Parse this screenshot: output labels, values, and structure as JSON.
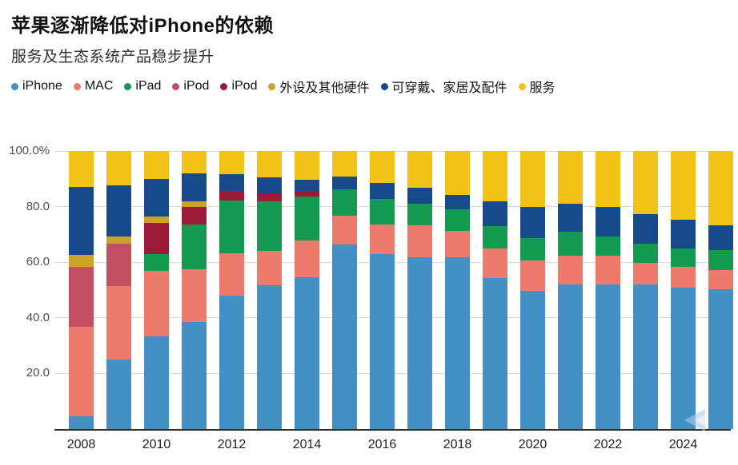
{
  "header": {
    "title": "苹果逐渐降低对iPhone的依赖",
    "subtitle": "服务及生态系统产品稳步提升"
  },
  "legend": {
    "items": [
      {
        "label": "iPhone",
        "color": "#4390c6"
      },
      {
        "label": "MAC",
        "color": "#ee7a6c"
      },
      {
        "label": "iPad",
        "color": "#149a51"
      },
      {
        "label": "iPod",
        "color": "#c25062"
      },
      {
        "label": "iPod",
        "color": "#9c1b38"
      },
      {
        "label": "外设及其他硬件",
        "color": "#cda22a"
      },
      {
        "label": "可穿戴、家居及配件",
        "color": "#174a8c"
      },
      {
        "label": "服务",
        "color": "#f2c216"
      }
    ]
  },
  "chart_data": {
    "type": "bar",
    "stacked": true,
    "unit": "%",
    "title": "苹果逐渐降低对iPhone的依赖",
    "subtitle": "服务及生态系统产品稳步提升",
    "categories": [
      "2008",
      "2009",
      "2010",
      "2011",
      "2012",
      "2013",
      "2014",
      "2015",
      "2016",
      "2017",
      "2018",
      "2019",
      "2020",
      "2021",
      "2022",
      "2023",
      "2024",
      "2025"
    ],
    "series": [
      {
        "name": "iPhone",
        "color": "#4390c6",
        "values": [
          4.5,
          24.9,
          33.3,
          38.5,
          48.1,
          51.8,
          54.5,
          66.4,
          62.8,
          61.9,
          61.8,
          54.2,
          49.6,
          52.0,
          52.0,
          52.0,
          51.0,
          50.3
        ]
      },
      {
        "name": "MAC",
        "color": "#ee7a6c",
        "values": [
          32.3,
          26.6,
          23.7,
          19.0,
          15.0,
          12.3,
          13.4,
          10.3,
          10.8,
          11.3,
          9.5,
          10.8,
          10.9,
          10.3,
          10.3,
          7.9,
          7.4,
          6.9
        ]
      },
      {
        "name": "iPad",
        "color": "#149a51",
        "values": [
          0,
          0,
          5.8,
          16.1,
          19.1,
          17.8,
          15.6,
          9.6,
          9.2,
          7.9,
          7.6,
          8.0,
          8.2,
          8.8,
          7.1,
          6.9,
          6.6,
          7.2
        ]
      },
      {
        "name": "iPod",
        "color": "#c25062",
        "values": [
          21.4,
          15.3,
          0,
          0,
          0,
          0,
          0,
          0,
          0,
          0,
          0,
          0,
          0,
          0,
          0,
          0,
          0,
          0
        ]
      },
      {
        "name": "iPod",
        "color": "#9c1b38",
        "values": [
          0,
          0,
          11.4,
          6.3,
          3.5,
          2.5,
          2.2,
          0,
          0,
          0,
          0,
          0,
          0,
          0,
          0,
          0,
          0,
          0
        ]
      },
      {
        "name": "外设及其他硬件",
        "color": "#cda22a",
        "values": [
          4.5,
          2.5,
          2.3,
          2.0,
          0,
          0,
          0,
          0,
          0,
          0,
          0,
          0,
          0,
          0,
          0,
          0,
          0,
          0
        ]
      },
      {
        "name": "可穿戴、家居及配件",
        "color": "#174a8c",
        "values": [
          24.3,
          18.3,
          13.4,
          10.2,
          6.1,
          6.2,
          4.0,
          4.5,
          5.7,
          5.7,
          5.4,
          8.9,
          11.2,
          10.0,
          10.5,
          10.6,
          10.4,
          9.0
        ]
      },
      {
        "name": "服务",
        "color": "#f2c216",
        "values": [
          13.0,
          12.4,
          10.1,
          7.9,
          8.2,
          9.4,
          10.3,
          9.2,
          11.5,
          13.2,
          15.7,
          18.1,
          20.1,
          18.9,
          20.1,
          22.6,
          24.6,
          26.6
        ]
      }
    ],
    "ylim": [
      0,
      100
    ],
    "y_ticks": [
      {
        "label": "100.0%",
        "value": 100
      },
      {
        "label": "80.0",
        "value": 80
      },
      {
        "label": "60.0",
        "value": 60
      },
      {
        "label": "40.0",
        "value": 40
      },
      {
        "label": "20.0",
        "value": 20
      }
    ],
    "x_tick_labels": [
      "2008",
      "2010",
      "2012",
      "2014",
      "2016",
      "2018",
      "2020",
      "2022",
      "2024"
    ],
    "grid": true,
    "legend_position": "top"
  },
  "watermark": {
    "name": "video-watermark-arrow"
  }
}
